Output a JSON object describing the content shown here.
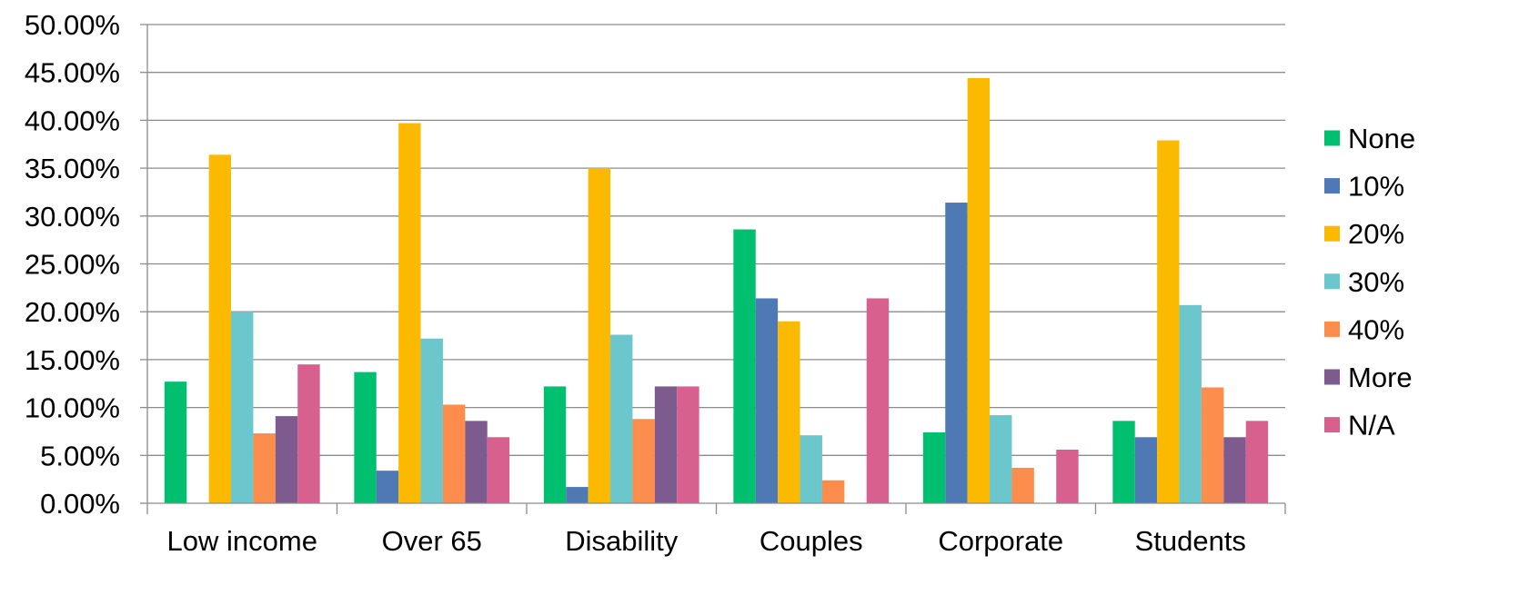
{
  "chart_data": {
    "type": "bar",
    "title": "",
    "xlabel": "",
    "ylabel": "",
    "ylim": [
      0,
      50
    ],
    "y_ticks": [
      "0.00%",
      "5.00%",
      "10.00%",
      "15.00%",
      "20.00%",
      "25.00%",
      "30.00%",
      "35.00%",
      "40.00%",
      "45.00%",
      "50.00%"
    ],
    "y_unit": "percent",
    "grid": "horizontal",
    "legend_position": "right",
    "categories": [
      "Low income",
      "Over 65",
      "Disability",
      "Couples",
      "Corporate",
      "Students"
    ],
    "series": [
      {
        "name": "None",
        "color": "#00BF6F",
        "values": [
          12.7,
          13.7,
          12.2,
          28.6,
          7.4,
          8.6
        ]
      },
      {
        "name": "10%",
        "color": "#4E79B4",
        "values": [
          0,
          3.4,
          1.7,
          21.4,
          31.4,
          6.9
        ]
      },
      {
        "name": "20%",
        "color": "#FBBA00",
        "values": [
          36.4,
          39.7,
          35.0,
          19.0,
          44.4,
          37.9
        ]
      },
      {
        "name": "30%",
        "color": "#6CC7CC",
        "values": [
          20.0,
          17.2,
          17.6,
          7.1,
          9.2,
          20.7
        ]
      },
      {
        "name": "40%",
        "color": "#FD8D4C",
        "values": [
          7.3,
          10.3,
          8.8,
          2.4,
          3.7,
          12.1
        ]
      },
      {
        "name": "More",
        "color": "#7E5B8E",
        "values": [
          9.1,
          8.6,
          12.2,
          0,
          0,
          6.9
        ]
      },
      {
        "name": "N/A",
        "color": "#D7608E",
        "values": [
          14.5,
          6.9,
          12.2,
          21.4,
          5.6,
          8.6
        ]
      }
    ]
  }
}
